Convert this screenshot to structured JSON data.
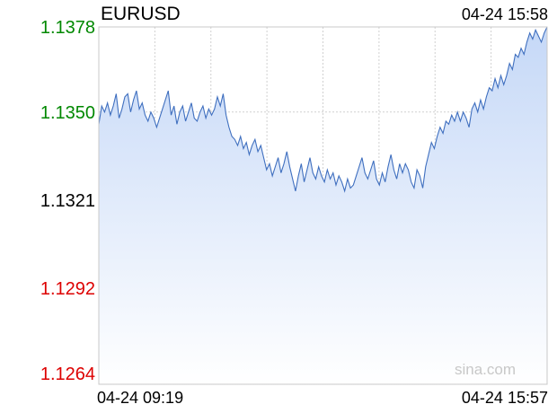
{
  "header": {
    "title": "EURUSD",
    "timestamp": "04-24 15:58"
  },
  "watermark": "sina.com",
  "colors": {
    "up": "#008800",
    "down": "#dd0000",
    "neutral": "#000000",
    "line": "#3f6fbf",
    "fill_top": "#c5d8f7",
    "fill_bottom": "#ffffff",
    "grid": "#d0d0d0",
    "baseline": "#9aa6c4"
  },
  "chart_data": {
    "type": "area",
    "title": "EURUSD",
    "x_start_label": "04-24 09:19",
    "x_end_label": "04-24 15:57",
    "ylim": [
      1.1264,
      1.1378
    ],
    "yticks": [
      {
        "label": "1.1378",
        "value": 1.1378,
        "tone": "up"
      },
      {
        "label": "1.1350",
        "value": 1.135,
        "tone": "up"
      },
      {
        "label": "1.1321",
        "value": 1.1321,
        "tone": "neutral"
      },
      {
        "label": "1.1292",
        "value": 1.1292,
        "tone": "down"
      },
      {
        "label": "1.1264",
        "value": 1.1264,
        "tone": "down"
      }
    ],
    "reference_value": 1.1321,
    "grid": true,
    "series": [
      {
        "values": [
          1.1346,
          1.1352,
          1.135,
          1.1353,
          1.1349,
          1.1352,
          1.1356,
          1.1348,
          1.1351,
          1.1355,
          1.1356,
          1.135,
          1.1354,
          1.1357,
          1.1351,
          1.1353,
          1.1349,
          1.1347,
          1.135,
          1.1348,
          1.1345,
          1.1348,
          1.1351,
          1.1354,
          1.1357,
          1.1349,
          1.1352,
          1.1346,
          1.135,
          1.1352,
          1.1347,
          1.135,
          1.1353,
          1.1348,
          1.1347,
          1.135,
          1.1352,
          1.1348,
          1.1351,
          1.1349,
          1.1351,
          1.1355,
          1.1352,
          1.1356,
          1.1349,
          1.1345,
          1.1342,
          1.1341,
          1.1339,
          1.1342,
          1.1338,
          1.134,
          1.1336,
          1.1339,
          1.1341,
          1.1337,
          1.1339,
          1.1335,
          1.1331,
          1.1333,
          1.1329,
          1.1332,
          1.1335,
          1.133,
          1.1333,
          1.1337,
          1.1332,
          1.1328,
          1.1324,
          1.1329,
          1.1333,
          1.1327,
          1.1331,
          1.1335,
          1.133,
          1.1328,
          1.1332,
          1.1329,
          1.1327,
          1.1331,
          1.1328,
          1.133,
          1.1326,
          1.1329,
          1.1327,
          1.1324,
          1.1328,
          1.1325,
          1.1326,
          1.1329,
          1.1332,
          1.1335,
          1.133,
          1.1328,
          1.1331,
          1.1334,
          1.1328,
          1.1326,
          1.133,
          1.1327,
          1.1332,
          1.1336,
          1.1331,
          1.1328,
          1.1333,
          1.133,
          1.1333,
          1.1331,
          1.1327,
          1.1325,
          1.1331,
          1.1329,
          1.1325,
          1.1332,
          1.1336,
          1.134,
          1.1338,
          1.1342,
          1.1345,
          1.1343,
          1.1347,
          1.1346,
          1.1349,
          1.1347,
          1.135,
          1.1347,
          1.135,
          1.1348,
          1.1345,
          1.1351,
          1.1353,
          1.135,
          1.1354,
          1.1351,
          1.1355,
          1.1358,
          1.1357,
          1.1361,
          1.1358,
          1.1362,
          1.1359,
          1.1362,
          1.1366,
          1.1364,
          1.1369,
          1.1368,
          1.1371,
          1.1369,
          1.1373,
          1.1376,
          1.1374,
          1.1377,
          1.1375,
          1.1373,
          1.1376,
          1.1378
        ]
      }
    ]
  }
}
